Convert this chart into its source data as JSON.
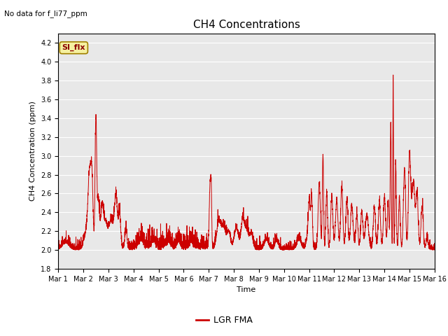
{
  "title": "CH4 Concentrations",
  "xlabel": "Time",
  "ylabel": "CH4 Concentration (ppm)",
  "ylim": [
    1.8,
    4.3
  ],
  "yticks": [
    1.8,
    2.0,
    2.2,
    2.4,
    2.6,
    2.8,
    3.0,
    3.2,
    3.4,
    3.6,
    3.8,
    4.0,
    4.2
  ],
  "xtick_labels": [
    "Mar 1",
    "Mar 2",
    "Mar 3",
    "Mar 4",
    "Mar 5",
    "Mar 6",
    "Mar 7",
    "Mar 8",
    "Mar 9",
    "Mar 10",
    "Mar 11",
    "Mar 12",
    "Mar 13",
    "Mar 14",
    "Mar 15",
    "Mar 16"
  ],
  "line_color": "#cc0000",
  "line_label": "LGR FMA",
  "no_data_text": "No data for f_li77_ppm",
  "si_flx_label": "SI_flx",
  "background_color": "#e8e8e8",
  "fig_background": "#ffffff",
  "title_fontsize": 11,
  "axis_label_fontsize": 8,
  "tick_fontsize": 7,
  "legend_fontsize": 9
}
